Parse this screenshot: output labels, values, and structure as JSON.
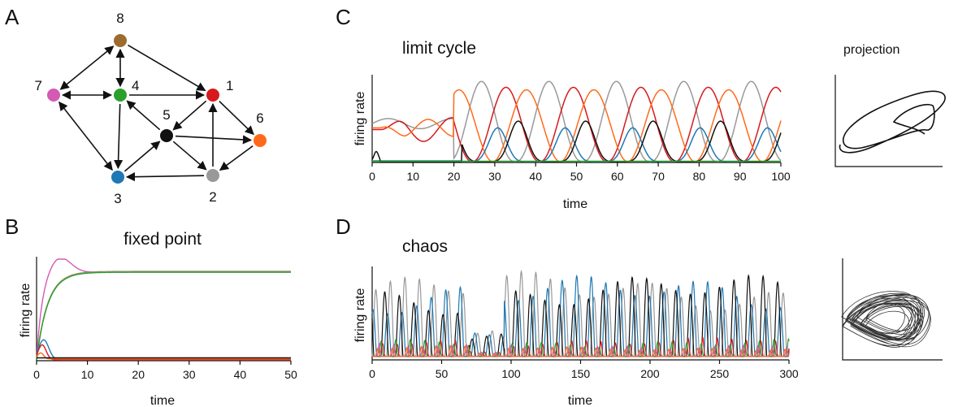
{
  "panels": {
    "A": {
      "letter": "A"
    },
    "B": {
      "letter": "B",
      "title": "fixed point",
      "xlabel": "time",
      "ylabel": "firing rate"
    },
    "C": {
      "letter": "C",
      "title": "limit cycle",
      "xlabel": "time",
      "ylabel": "firing rate",
      "projection_title": "projection"
    },
    "D": {
      "letter": "D",
      "title": "chaos",
      "xlabel": "time",
      "ylabel": "firing rate"
    }
  },
  "colors": {
    "1": "#d7191c",
    "2": "#999999",
    "3": "#1f78b4",
    "4": "#2ca02c",
    "5": "#111111",
    "6": "#ff6a1a",
    "7": "#d45ab4",
    "8": "#9c6b2e"
  },
  "chart_data": [
    {
      "type": "diagram",
      "nodes": [
        {
          "id": "1",
          "label": "1"
        },
        {
          "id": "2",
          "label": "2"
        },
        {
          "id": "3",
          "label": "3"
        },
        {
          "id": "4",
          "label": "4"
        },
        {
          "id": "5",
          "label": "5"
        },
        {
          "id": "6",
          "label": "6"
        },
        {
          "id": "7",
          "label": "7"
        },
        {
          "id": "8",
          "label": "8"
        }
      ],
      "edges": [
        {
          "from": "8",
          "to": "1"
        },
        {
          "from": "8",
          "to": "4",
          "bidirectional": true
        },
        {
          "from": "8",
          "to": "7",
          "bidirectional": true
        },
        {
          "from": "4",
          "to": "7",
          "bidirectional": true
        },
        {
          "from": "4",
          "to": "1"
        },
        {
          "from": "4",
          "to": "3"
        },
        {
          "from": "5",
          "to": "4"
        },
        {
          "from": "1",
          "to": "5"
        },
        {
          "from": "1",
          "to": "6"
        },
        {
          "from": "5",
          "to": "6"
        },
        {
          "from": "5",
          "to": "2"
        },
        {
          "from": "2",
          "to": "1"
        },
        {
          "from": "6",
          "to": "2"
        },
        {
          "from": "2",
          "to": "3"
        },
        {
          "from": "3",
          "to": "5"
        },
        {
          "from": "7",
          "to": "3",
          "bidirectional": true
        }
      ]
    },
    {
      "type": "line",
      "panel": "B",
      "title": "fixed point",
      "xlabel": "time",
      "ylabel": "firing rate",
      "xlim": [
        0,
        50
      ],
      "xticks": [
        0,
        10,
        20,
        30,
        40,
        50
      ]
    },
    {
      "type": "line",
      "panel": "C",
      "title": "limit cycle",
      "xlabel": "time",
      "ylabel": "firing rate",
      "xlim": [
        0,
        100
      ],
      "xticks": [
        0,
        10,
        20,
        30,
        40,
        50,
        60,
        70,
        80,
        90,
        100
      ],
      "projection_title": "projection"
    },
    {
      "type": "line",
      "panel": "D",
      "title": "chaos",
      "xlabel": "time",
      "ylabel": "firing rate",
      "xlim": [
        0,
        300
      ],
      "xticks": [
        0,
        50,
        100,
        150,
        200,
        250,
        300
      ]
    }
  ]
}
